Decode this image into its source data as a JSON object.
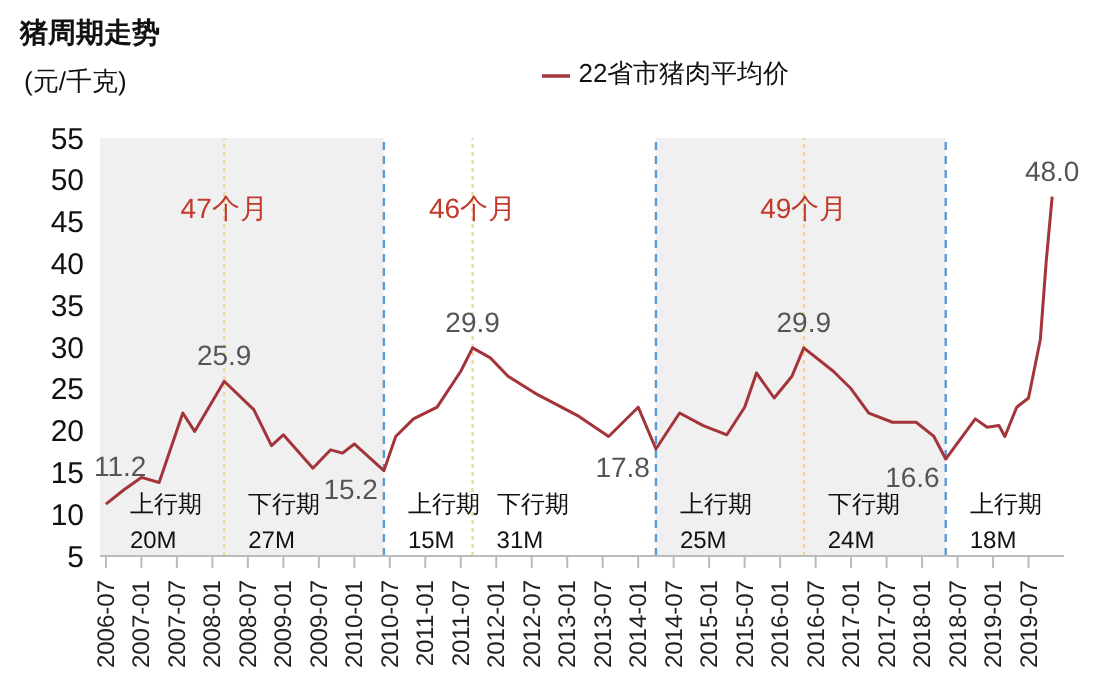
{
  "chart_data": {
    "type": "line",
    "title": "猪周期走势",
    "ylabel": "(元/千克)",
    "legend": "top",
    "x": [
      "2006-07",
      "2006-10",
      "2007-01",
      "2007-04",
      "2007-08",
      "2007-10",
      "2008-03",
      "2008-08",
      "2008-11",
      "2009-01",
      "2009-06",
      "2009-09",
      "2009-11",
      "2010-01",
      "2010-06",
      "2010-08",
      "2010-11",
      "2011-03",
      "2011-07",
      "2011-09",
      "2011-12",
      "2012-03",
      "2012-08",
      "2013-03",
      "2013-08",
      "2014-01",
      "2014-04",
      "2014-08",
      "2014-12",
      "2015-04",
      "2015-07",
      "2015-09",
      "2015-12",
      "2016-03",
      "2016-05",
      "2016-10",
      "2017-01",
      "2017-04",
      "2017-08",
      "2017-12",
      "2018-03",
      "2018-05",
      "2018-10",
      "2018-12",
      "2019-02",
      "2019-03",
      "2019-05",
      "2019-07",
      "2019-09",
      "2019-10",
      "2019-11"
    ],
    "series": [
      {
        "name": "22省市猪肉平均价",
        "color": "#a3343a",
        "values": [
          11.2,
          12.9,
          14.4,
          13.8,
          22.1,
          19.9,
          25.9,
          22.5,
          18.2,
          19.5,
          15.5,
          17.7,
          17.3,
          18.4,
          15.2,
          19.3,
          21.4,
          22.8,
          27.1,
          29.9,
          28.7,
          26.5,
          24.3,
          21.7,
          19.3,
          22.8,
          17.8,
          22.1,
          20.6,
          19.5,
          22.8,
          26.9,
          23.9,
          26.5,
          29.9,
          27.1,
          25.0,
          22.1,
          21.0,
          21.0,
          19.3,
          16.6,
          21.4,
          20.4,
          20.6,
          19.3,
          22.8,
          23.9,
          30.9,
          40.3,
          48.0
        ]
      }
    ],
    "xlim": [
      "2006-06",
      "2020-01"
    ],
    "xticks": [
      "2006-07",
      "2007-01",
      "2007-07",
      "2008-01",
      "2008-07",
      "2009-01",
      "2009-07",
      "2010-01",
      "2010-07",
      "2011-01",
      "2011-07",
      "2012-01",
      "2012-07",
      "2013-01",
      "2013-07",
      "2014-01",
      "2014-07",
      "2015-01",
      "2015-07",
      "2016-01",
      "2016-07",
      "2017-01",
      "2017-07",
      "2018-01",
      "2018-07",
      "2019-01",
      "2019-07"
    ],
    "ylim": [
      5,
      55
    ],
    "yticks": [
      5,
      10,
      15,
      20,
      25,
      30,
      35,
      40,
      45,
      50,
      55
    ],
    "grid": false,
    "marker": "none",
    "line_style": "solid",
    "bands": [
      {
        "axis": "x",
        "from": "2006-06",
        "to": "2010-06",
        "color": "#f0f0f0"
      },
      {
        "axis": "x",
        "from": "2014-04",
        "to": "2018-05",
        "color": "#f0f0f0"
      }
    ],
    "ref_lines": [
      {
        "axis": "x",
        "value": "2010-06",
        "color": "#5b9bd5",
        "line_style": "dashed"
      },
      {
        "axis": "x",
        "value": "2014-04",
        "color": "#5b9bd5",
        "line_style": "dashed"
      },
      {
        "axis": "x",
        "value": "2018-05",
        "color": "#5b9bd5",
        "line_style": "dashed"
      },
      {
        "axis": "x",
        "value": "2008-03",
        "color": "#f0d79a",
        "line_style": "dotted",
        "label": "47个月"
      },
      {
        "axis": "x",
        "value": "2011-09",
        "color": "#f0d79a",
        "line_style": "dotted",
        "label": "46个月"
      },
      {
        "axis": "x",
        "value": "2016-05",
        "color": "#f0d79a",
        "line_style": "dotted",
        "label": "49个月"
      }
    ],
    "annotations": [
      {
        "text": "11.2",
        "x": "2006-07",
        "y": 11.2
      },
      {
        "text": "25.9",
        "x": "2008-03",
        "y": 25.9
      },
      {
        "text": "15.2",
        "x": "2010-06",
        "y": 15.2
      },
      {
        "text": "29.9",
        "x": "2011-09",
        "y": 29.9
      },
      {
        "text": "17.8",
        "x": "2014-04",
        "y": 17.8
      },
      {
        "text": "29.9",
        "x": "2016-05",
        "y": 29.9
      },
      {
        "text": "16.6",
        "x": "2018-05",
        "y": 16.6
      },
      {
        "text": "48.0",
        "x": "2019-11",
        "y": 48.0
      },
      "上行期 20M",
      "下行期 27M",
      "上行期 15M",
      "下行期 31M",
      "上行期 25M",
      "下行期 24M",
      "上行期 18M"
    ]
  }
}
